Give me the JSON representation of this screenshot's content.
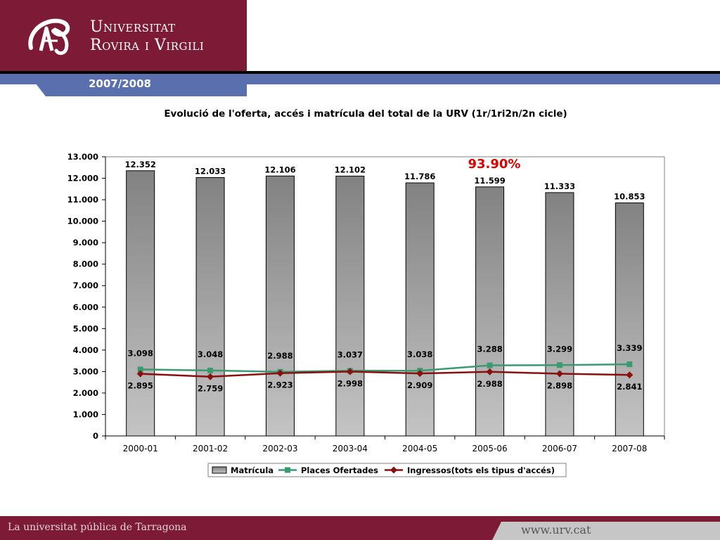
{
  "header": {
    "university_line1": "Universitat",
    "university_line2": "Rovira i Virgili",
    "year": "2007/2008"
  },
  "footer": {
    "tagline": "La universitat pública de Tarragona",
    "url": "www.urv.cat"
  },
  "colors": {
    "brand": "#7d1a36",
    "band": "#5a6fae",
    "places_line": "#3a9a70",
    "ingressos_line": "#8a1010",
    "annotation": "#e00000"
  },
  "chart_data": {
    "type": "bar",
    "title": "Evolució de l'oferta, accés i matrícula del total de la URV (1r/1ri2n/2n cicle)",
    "categories": [
      "2000-01",
      "2001-02",
      "2002-03",
      "2003-04",
      "2004-05",
      "2005-06",
      "2006-07",
      "2007-08"
    ],
    "ylim": [
      0,
      13000
    ],
    "yticks": [
      0,
      1000,
      2000,
      3000,
      4000,
      5000,
      6000,
      7000,
      8000,
      9000,
      10000,
      11000,
      12000,
      13000
    ],
    "ytick_labels": [
      "0",
      "1.000",
      "2.000",
      "3.000",
      "4.000",
      "5.000",
      "6.000",
      "7.000",
      "8.000",
      "9.000",
      "10.000",
      "11.000",
      "12.000",
      "13.000"
    ],
    "series": [
      {
        "name": "Matrícula",
        "kind": "bar",
        "values": [
          12352,
          12033,
          12106,
          12102,
          11786,
          11599,
          11333,
          10853
        ],
        "labels": [
          "12.352",
          "12.033",
          "12.106",
          "12.102",
          "11.786",
          "11.599",
          "11.333",
          "10.853"
        ]
      },
      {
        "name": "Places Ofertades",
        "kind": "line",
        "marker": "square",
        "values": [
          3098,
          3048,
          2988,
          3037,
          3038,
          3288,
          3299,
          3339
        ],
        "labels": [
          "3.098",
          "3.048",
          "2.988",
          "3.037",
          "3.038",
          "3.288",
          "3.299",
          "3.339"
        ]
      },
      {
        "name": "Ingressos(tots els tipus d'accés)",
        "kind": "line",
        "marker": "diamond",
        "values": [
          2895,
          2759,
          2923,
          2998,
          2909,
          2988,
          2898,
          2841
        ],
        "labels": [
          "2.895",
          "2.759",
          "2.923",
          "2.998",
          "2.909",
          "2.988",
          "2.898",
          "2.841"
        ]
      }
    ],
    "annotation": "93.90%",
    "legend_position": "bottom"
  }
}
